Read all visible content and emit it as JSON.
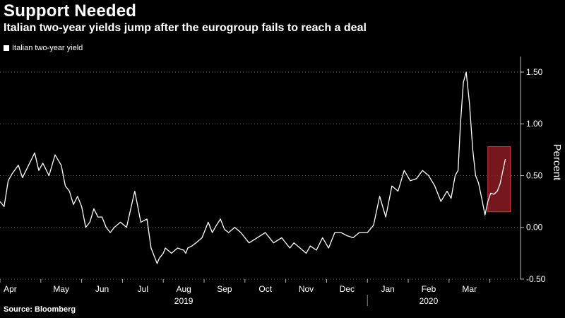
{
  "header": {
    "title": "Support Needed",
    "subtitle": "Italian two-year yields jump after the eurogroup fails to reach a deal"
  },
  "footer": {
    "source": "Source: Bloomberg"
  },
  "colors": {
    "background": "#000000",
    "line": "#ffffff",
    "highlight_fill": "#8b1a22",
    "highlight_stroke": "#e0343f",
    "axis": "#bbbbbb"
  },
  "chart_data": {
    "type": "line",
    "title": "Support Needed",
    "subtitle": "Italian two-year yields jump after the eurogroup fails to reach a deal",
    "ylabel": "Percent",
    "xlabel": "",
    "ylim": [
      -0.5,
      1.65
    ],
    "yticks": [
      -0.5,
      0.0,
      0.5,
      1.0,
      1.5
    ],
    "ytick_labels": [
      "-0.50",
      "0.00",
      "0.50",
      "1.00",
      "1.50"
    ],
    "y_axis_side": "right",
    "legend": "top-left",
    "legend_entries": [
      "Italian two-year yield"
    ],
    "grid": "horizontal dotted",
    "xlim_months": [
      0,
      12.75
    ],
    "month_labels": [
      "Apr",
      "May",
      "Jun",
      "Jul",
      "Aug",
      "Sep",
      "Oct",
      "Nov",
      "Dec",
      "Jan",
      "Feb",
      "Mar"
    ],
    "month_label_positions": [
      0.25,
      1.5,
      2.5,
      3.5,
      4.5,
      5.5,
      6.5,
      7.5,
      8.5,
      9.5,
      10.5,
      11.5
    ],
    "year_labels": [
      {
        "label": "2019",
        "at": 4.5
      },
      {
        "label": "2020",
        "at": 10.5
      }
    ],
    "year_divider_at": 9.0,
    "highlight_range": {
      "x0": 11.95,
      "x1": 12.5,
      "y0": 0.15,
      "y1": 0.78
    },
    "series": [
      {
        "name": "Italian two-year yield",
        "x": [
          0.0,
          0.1,
          0.2,
          0.3,
          0.45,
          0.55,
          0.7,
          0.85,
          0.95,
          1.05,
          1.2,
          1.35,
          1.5,
          1.6,
          1.7,
          1.8,
          1.9,
          2.0,
          2.1,
          2.2,
          2.3,
          2.4,
          2.5,
          2.6,
          2.7,
          2.8,
          2.95,
          3.1,
          3.3,
          3.45,
          3.6,
          3.7,
          3.85,
          3.9,
          4.0,
          4.05,
          4.2,
          4.35,
          4.5,
          4.55,
          4.6,
          4.7,
          4.8,
          4.95,
          5.1,
          5.2,
          5.3,
          5.4,
          5.5,
          5.6,
          5.75,
          5.9,
          6.1,
          6.3,
          6.5,
          6.7,
          6.9,
          7.1,
          7.2,
          7.35,
          7.5,
          7.6,
          7.75,
          7.9,
          8.05,
          8.2,
          8.35,
          8.5,
          8.65,
          8.8,
          9.0,
          9.15,
          9.3,
          9.45,
          9.6,
          9.75,
          9.9,
          10.05,
          10.2,
          10.35,
          10.5,
          10.65,
          10.8,
          10.95,
          11.05,
          11.15,
          11.22,
          11.28,
          11.35,
          11.42,
          11.5,
          11.58,
          11.65,
          11.72,
          11.8,
          11.88,
          11.95,
          12.02,
          12.1,
          12.18,
          12.25,
          12.32,
          12.38
        ],
        "values": [
          0.25,
          0.2,
          0.45,
          0.52,
          0.6,
          0.48,
          0.6,
          0.72,
          0.55,
          0.62,
          0.5,
          0.7,
          0.6,
          0.4,
          0.35,
          0.22,
          0.3,
          0.2,
          0.0,
          0.05,
          0.18,
          0.1,
          0.1,
          0.0,
          -0.05,
          0.0,
          0.05,
          0.0,
          0.35,
          0.05,
          0.08,
          -0.2,
          -0.35,
          -0.3,
          -0.25,
          -0.2,
          -0.25,
          -0.2,
          -0.22,
          -0.25,
          -0.2,
          -0.18,
          -0.15,
          -0.1,
          0.05,
          -0.05,
          0.02,
          0.08,
          -0.02,
          -0.05,
          0.0,
          -0.05,
          -0.15,
          -0.1,
          -0.05,
          -0.15,
          -0.1,
          -0.2,
          -0.15,
          -0.2,
          -0.25,
          -0.18,
          -0.22,
          -0.1,
          -0.2,
          -0.05,
          -0.05,
          -0.08,
          -0.1,
          -0.05,
          -0.05,
          0.02,
          0.3,
          0.1,
          0.4,
          0.35,
          0.55,
          0.45,
          0.47,
          0.55,
          0.5,
          0.4,
          0.25,
          0.35,
          0.28,
          0.5,
          0.55,
          1.0,
          1.4,
          1.5,
          1.2,
          0.75,
          0.5,
          0.43,
          0.28,
          0.12,
          0.25,
          0.33,
          0.32,
          0.35,
          0.42,
          0.55,
          0.66
        ]
      }
    ]
  }
}
